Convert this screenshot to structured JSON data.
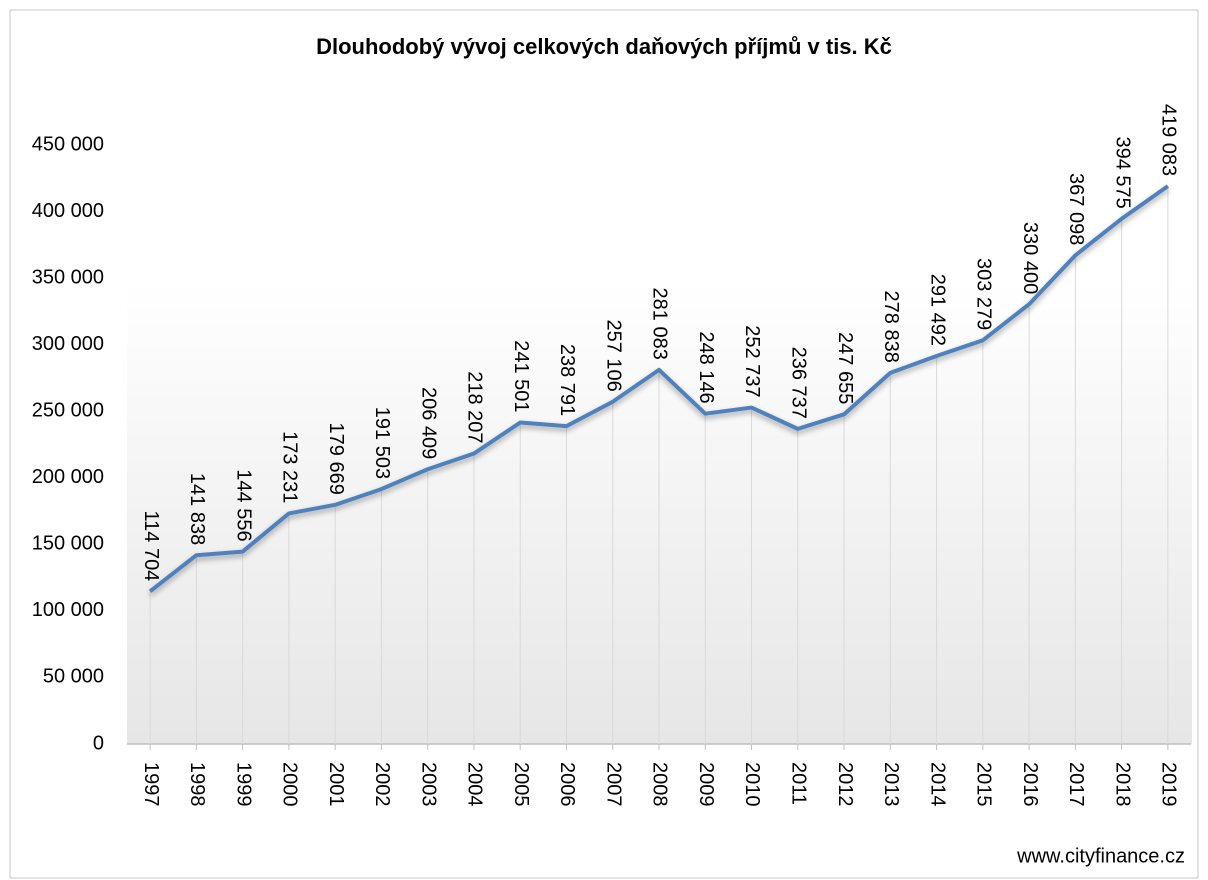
{
  "chart_data": {
    "type": "line",
    "title": "Dlouhodobý vývoj celkových daňových příjmů v tis. Kč",
    "categories": [
      "1997",
      "1998",
      "1999",
      "2000",
      "2001",
      "2002",
      "2003",
      "2004",
      "2005",
      "2006",
      "2007",
      "2008",
      "2009",
      "2010",
      "2011",
      "2012",
      "2013",
      "2014",
      "2015",
      "2016",
      "2017",
      "2018",
      "2019"
    ],
    "values": [
      114704,
      141838,
      144556,
      173231,
      179669,
      191503,
      206409,
      218207,
      241501,
      238791,
      257106,
      281083,
      248146,
      252737,
      236737,
      247655,
      278838,
      291492,
      303279,
      330400,
      367098,
      394575,
      419083
    ],
    "value_labels": [
      "114 704",
      "141 838",
      "144 556",
      "173 231",
      "179 669",
      "191 503",
      "206 409",
      "218 207",
      "241 501",
      "238 791",
      "257 106",
      "281 083",
      "248 146",
      "252 737",
      "236 737",
      "247 655",
      "278 838",
      "291 492",
      "303 279",
      "330 400",
      "367 098",
      "394 575",
      "419 083"
    ],
    "color": "#4f81bd",
    "ylim": [
      0,
      450000
    ],
    "yticks": [
      0,
      {
        "value": 50000,
        "label": "50 000"
      },
      {
        "value": 100000,
        "label": "100 000"
      },
      {
        "value": 150000,
        "label": "150 000"
      },
      {
        "value": 200000,
        "label": "200 000"
      },
      {
        "value": 250000,
        "label": "250 000"
      },
      {
        "value": 300000,
        "label": "300 000"
      },
      {
        "value": 350000,
        "label": "350 000"
      },
      {
        "value": 400000,
        "label": "400 000"
      },
      {
        "value": 450000,
        "label": "450 000"
      }
    ],
    "source": "www.cityfinance.cz"
  }
}
